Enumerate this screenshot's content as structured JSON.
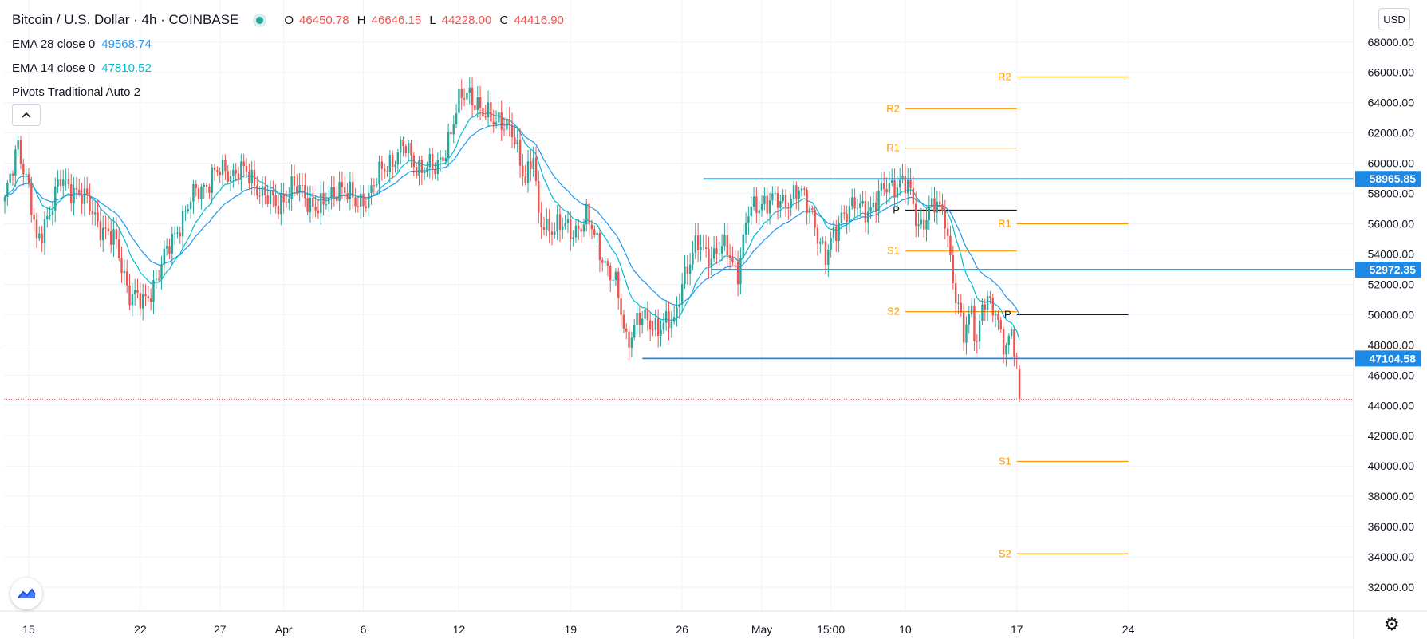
{
  "header": {
    "title": "Bitcoin / U.S. Dollar · 4h · COINBASE",
    "ohlc": [
      {
        "k": "O",
        "v": "46450.78"
      },
      {
        "k": "H",
        "v": "46646.15"
      },
      {
        "k": "L",
        "v": "44228.00"
      },
      {
        "k": "C",
        "v": "44416.90"
      }
    ]
  },
  "indicators": [
    {
      "name": "EMA 28 close 0",
      "value": "49568.74",
      "color": "#2196f3"
    },
    {
      "name": "EMA 14 close 0",
      "value": "47810.52",
      "color": "#00bcd4"
    },
    {
      "name": "Pivots Traditional Auto 2",
      "value": "",
      "color": "#131722"
    }
  ],
  "currency_label": "USD",
  "chart_data": {
    "type": "candlestick",
    "symbol": "Bitcoin / U.S. Dollar",
    "interval": "4h",
    "exchange": "COINBASE",
    "ylim": [
      31000,
      69200
    ],
    "y_ticks": [
      "32000.00",
      "34000.00",
      "36000.00",
      "38000.00",
      "40000.00",
      "42000.00",
      "44000.00",
      "46000.00",
      "48000.00",
      "50000.00",
      "52000.00",
      "54000.00",
      "56000.00",
      "58000.00",
      "60000.00",
      "62000.00",
      "64000.00",
      "66000.00",
      "68000.00"
    ],
    "x_ticks": [
      {
        "label": "15",
        "bar": 9
      },
      {
        "label": "22",
        "bar": 51
      },
      {
        "label": "27",
        "bar": 81
      },
      {
        "label": "Apr",
        "bar": 105
      },
      {
        "label": "6",
        "bar": 135
      },
      {
        "label": "12",
        "bar": 171
      },
      {
        "label": "19",
        "bar": 213
      },
      {
        "label": "26",
        "bar": 255
      },
      {
        "label": "May",
        "bar": 285
      },
      {
        "label": "15:00",
        "bar": 311
      },
      {
        "label": "10",
        "bar": 339
      },
      {
        "label": "17",
        "bar": 381
      },
      {
        "label": "24",
        "bar": 423
      }
    ],
    "waypoints": [
      [
        0,
        57200
      ],
      [
        5,
        61500
      ],
      [
        9,
        58200
      ],
      [
        12,
        54500
      ],
      [
        15,
        56200
      ],
      [
        21,
        58700
      ],
      [
        27,
        58300
      ],
      [
        30,
        57500
      ],
      [
        36,
        56000
      ],
      [
        42,
        54500
      ],
      [
        47,
        51500
      ],
      [
        52,
        50600
      ],
      [
        60,
        53600
      ],
      [
        66,
        56200
      ],
      [
        72,
        58000
      ],
      [
        78,
        59200
      ],
      [
        88,
        59600
      ],
      [
        96,
        58400
      ],
      [
        102,
        57000
      ],
      [
        108,
        58500
      ],
      [
        114,
        57600
      ],
      [
        120,
        57000
      ],
      [
        126,
        58700
      ],
      [
        132,
        57200
      ],
      [
        138,
        58200
      ],
      [
        144,
        60000
      ],
      [
        150,
        61000
      ],
      [
        156,
        59800
      ],
      [
        162,
        59500
      ],
      [
        168,
        62000
      ],
      [
        172,
        64400
      ],
      [
        175,
        64900
      ],
      [
        180,
        63000
      ],
      [
        186,
        63100
      ],
      [
        192,
        61400
      ],
      [
        196,
        59200
      ],
      [
        199,
        60400
      ],
      [
        201,
        56000
      ],
      [
        207,
        55900
      ],
      [
        213,
        55500
      ],
      [
        219,
        56300
      ],
      [
        225,
        54000
      ],
      [
        230,
        51800
      ],
      [
        234,
        48400
      ],
      [
        238,
        49600
      ],
      [
        244,
        49400
      ],
      [
        252,
        49300
      ],
      [
        255,
        52500
      ],
      [
        261,
        54500
      ],
      [
        267,
        54000
      ],
      [
        272,
        54300
      ],
      [
        276,
        53000
      ],
      [
        280,
        56600
      ],
      [
        285,
        57600
      ],
      [
        292,
        57300
      ],
      [
        298,
        58200
      ],
      [
        304,
        56800
      ],
      [
        309,
        53500
      ],
      [
        315,
        56800
      ],
      [
        321,
        57000
      ],
      [
        327,
        57200
      ],
      [
        333,
        58600
      ],
      [
        337,
        58800
      ],
      [
        340,
        58300
      ],
      [
        344,
        56000
      ],
      [
        350,
        57100
      ],
      [
        354,
        56700
      ],
      [
        358,
        51000
      ],
      [
        361,
        48500
      ],
      [
        364,
        50600
      ],
      [
        366,
        48200
      ],
      [
        368,
        50600
      ],
      [
        373,
        50300
      ],
      [
        377,
        47800
      ],
      [
        379,
        48600
      ],
      [
        381,
        46500
      ],
      [
        382,
        44417
      ]
    ],
    "last_candle": {
      "open": 46450.78,
      "high": 46646.15,
      "low": 44228.0,
      "close": 44416.9
    },
    "last_price": 44416.9,
    "ema": [
      {
        "name": "EMA 28 close 0",
        "period": 28,
        "last": 49568.74,
        "color": "#2196f3"
      },
      {
        "name": "EMA 14 close 0",
        "period": 14,
        "last": 47810.52,
        "color": "#00bcd4"
      }
    ],
    "horizontal_levels": [
      {
        "price": 58965.85,
        "label": "58965.85",
        "from_bar": 263,
        "color": "#1e88e5"
      },
      {
        "price": 52972.35,
        "label": "52972.35",
        "from_bar": 266,
        "color": "#1e88e5"
      },
      {
        "price": 47104.58,
        "label": "47104.58",
        "from_bar": 240,
        "color": "#1e88e5"
      }
    ],
    "pivots": [
      {
        "from_bar": 339,
        "to_bar": 381,
        "levels": [
          {
            "label": "R2",
            "price": 63600
          },
          {
            "label": "R1",
            "price": 61000
          },
          {
            "label": "P",
            "price": 56900
          },
          {
            "label": "S1",
            "price": 54200
          },
          {
            "label": "S2",
            "price": 50200
          }
        ]
      },
      {
        "from_bar": 381,
        "to_bar": 423,
        "levels": [
          {
            "label": "R2",
            "price": 65700
          },
          {
            "label": "R1",
            "price": 56000
          },
          {
            "label": "P",
            "price": 50000
          },
          {
            "label": "S1",
            "price": 40300
          },
          {
            "label": "S2",
            "price": 34200
          }
        ]
      }
    ],
    "colors": {
      "up": "#26a69a",
      "down": "#ef5350",
      "pivot_levels": "#ff9800",
      "pivot_p": "#131722",
      "level_line": "#1e88e5",
      "last_price_line": "#ef5350",
      "axis_text": "#131722"
    }
  }
}
